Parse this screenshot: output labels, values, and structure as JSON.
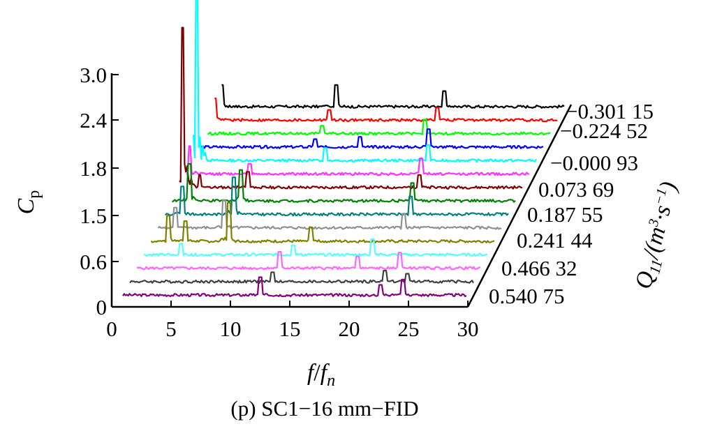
{
  "caption": "(p) SC1−16 mm−FID",
  "chart_data": {
    "type": "line",
    "subtype": "waterfall-spectrum",
    "xlabel_parts": {
      "main": "f",
      "sep": "/",
      "main2": "f",
      "sub": "n"
    },
    "ylabel_parts": {
      "main": "C",
      "sub": "p"
    },
    "zlabel_parts": {
      "main": "Q",
      "sub": "11",
      "rest": "/(m",
      "sup1": "3",
      "mid": "·s",
      "sup2": "−1",
      "end": ")"
    },
    "x_ticks": [
      "0",
      "5",
      "10",
      "15",
      "20",
      "25",
      "30"
    ],
    "y_ticks": [
      "0",
      "0.6",
      "1.5",
      "1.8",
      "2.4",
      "3.0"
    ],
    "xlim": [
      0,
      30
    ],
    "z_labels": [
      "0.540 75",
      "0.466 32",
      "0.241 44",
      "0.187 55",
      "0.073 69",
      "−0.000 93",
      "−0.224 52",
      "−0.301 15"
    ],
    "series": [
      {
        "color": "#800080",
        "peaks": [
          [
            12.0,
            0.25
          ],
          [
            22.5,
            0.15
          ],
          [
            24.5,
            0.22
          ]
        ]
      },
      {
        "color": "#404040",
        "peaks": [
          [
            12.5,
            0.14
          ],
          [
            22.3,
            0.16
          ],
          [
            24.2,
            0.12
          ]
        ]
      },
      {
        "color": "#ff66ff",
        "peaks": [
          [
            12.5,
            0.23
          ],
          [
            19.3,
            0.17
          ],
          [
            23.0,
            0.22
          ]
        ]
      },
      {
        "color": "#55ffff",
        "peaks": [
          [
            3.2,
            0.16
          ],
          [
            13.0,
            0.14
          ],
          [
            20.0,
            0.22
          ]
        ]
      },
      {
        "color": "#808000",
        "peaks": [
          [
            1.5,
            0.35
          ],
          [
            3.0,
            0.28
          ],
          [
            6.8,
            0.52
          ],
          [
            14.0,
            0.2
          ]
        ]
      },
      {
        "color": "#909090",
        "peaks": [
          [
            1.5,
            0.28
          ],
          [
            5.8,
            0.38
          ],
          [
            21.5,
            0.2
          ]
        ]
      },
      {
        "color": "#008080",
        "peaks": [
          [
            1.5,
            0.38
          ],
          [
            6.0,
            0.5
          ],
          [
            21.5,
            0.25
          ]
        ]
      },
      {
        "color": "#008000",
        "peaks": [
          [
            1.5,
            0.5
          ],
          [
            6.0,
            0.42
          ],
          [
            21.0,
            0.25
          ]
        ]
      },
      {
        "color": "#800000",
        "peaks": [
          [
            0.3,
            2.1
          ],
          [
            1.8,
            0.18
          ],
          [
            6.0,
            0.22
          ],
          [
            21.0,
            0.18
          ]
        ]
      },
      {
        "color": "#ff33ff",
        "peaks": [
          [
            0.3,
            0.38
          ],
          [
            5.5,
            0.15
          ],
          [
            20.5,
            0.22
          ]
        ]
      },
      {
        "color": "#00ffff",
        "peaks": [
          [
            0.3,
            2.4
          ],
          [
            11.5,
            0.18
          ],
          [
            20.5,
            0.22
          ]
        ]
      },
      {
        "color": "#0000ff",
        "peaks": [
          [
            10.0,
            0.12
          ],
          [
            14.0,
            0.15
          ],
          [
            20.0,
            0.25
          ]
        ]
      },
      {
        "color": "#00ff00",
        "peaks": [
          [
            10.0,
            0.12
          ],
          [
            19.0,
            0.2
          ]
        ]
      },
      {
        "color": "#ff0000",
        "peaks": [
          [
            0.0,
            0.3
          ],
          [
            10.0,
            0.15
          ],
          [
            19.5,
            0.18
          ]
        ]
      },
      {
        "color": "#000000",
        "peaks": [
          [
            0.0,
            0.3
          ],
          [
            10.0,
            0.3
          ],
          [
            19.5,
            0.22
          ]
        ]
      }
    ]
  }
}
